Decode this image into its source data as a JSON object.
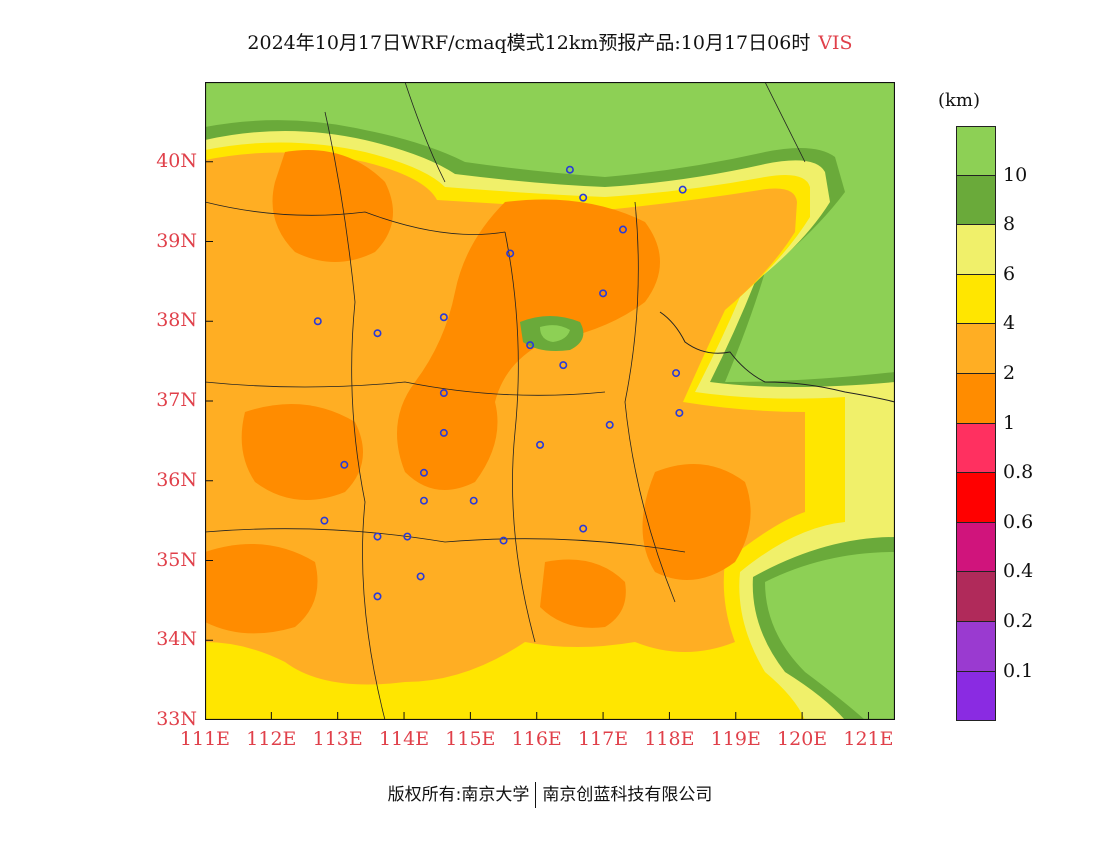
{
  "title": {
    "main": "2024年10月17日WRF/cmaq模式12km预报产品:10月17日06时",
    "variable": "VIS"
  },
  "colorbar": {
    "unit": "(km)",
    "swatches": [
      {
        "color": "#8dd055"
      },
      {
        "color": "#6aaa3a"
      },
      {
        "color": "#f0f06a"
      },
      {
        "color": "#ffe600"
      },
      {
        "color": "#ffae23"
      },
      {
        "color": "#ff8c00"
      },
      {
        "color": "#ff3060"
      },
      {
        "color": "#ff0000"
      },
      {
        "color": "#d0147c"
      },
      {
        "color": "#b02a5a"
      },
      {
        "color": "#9a3ad0"
      },
      {
        "color": "#8a2be2"
      }
    ],
    "labels": [
      "10",
      "8",
      "6",
      "4",
      "2",
      "1",
      "0.8",
      "0.6",
      "0.4",
      "0.2",
      "0.1"
    ]
  },
  "map": {
    "lat_labels": [
      "40N",
      "39N",
      "38N",
      "37N",
      "36N",
      "35N",
      "34N",
      "33N"
    ],
    "lon_labels": [
      "111E",
      "112E",
      "113E",
      "114E",
      "115E",
      "116E",
      "117E",
      "118E",
      "119E",
      "120E",
      "121E"
    ],
    "lon_range": [
      111,
      121.4
    ],
    "lat_range": [
      33,
      41
    ],
    "city_marker_color": "#2a3ad8"
  },
  "footer": {
    "left": "版权所有:南京大学",
    "right": "南京创蓝科技有限公司"
  }
}
